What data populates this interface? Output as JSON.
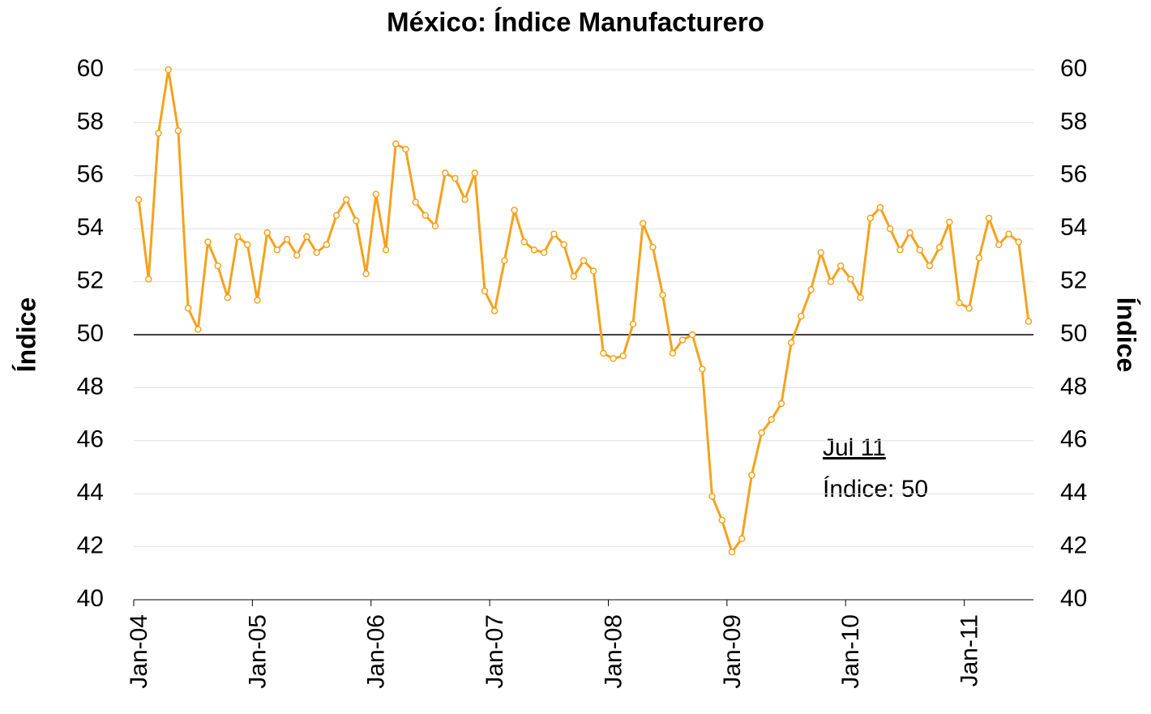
{
  "chart_data": {
    "type": "line",
    "title": "México: Índice Manufacturero",
    "ylabel": "Índice",
    "y2label": "Índice",
    "categories": [
      "Jan-04",
      null,
      null,
      null,
      null,
      null,
      null,
      null,
      null,
      null,
      null,
      null,
      "Jan-05",
      null,
      null,
      null,
      null,
      null,
      null,
      null,
      null,
      null,
      null,
      null,
      "Jan-06",
      null,
      null,
      null,
      null,
      null,
      null,
      null,
      null,
      null,
      null,
      null,
      "Jan-07",
      null,
      null,
      null,
      null,
      null,
      null,
      null,
      null,
      null,
      null,
      null,
      "Jan-08",
      null,
      null,
      null,
      null,
      null,
      null,
      null,
      null,
      null,
      null,
      null,
      "Jan-09",
      null,
      null,
      null,
      null,
      null,
      null,
      null,
      null,
      null,
      null,
      null,
      "Jan-10",
      null,
      null,
      null,
      null,
      null,
      null,
      null,
      null,
      null,
      null,
      null,
      "Jan-11",
      null,
      null,
      null,
      null,
      null,
      null
    ],
    "series": [
      {
        "name": "Índice",
        "color": "#f5a21e",
        "values": [
          55.1,
          52.1,
          57.6,
          60.0,
          57.7,
          51.0,
          50.2,
          53.5,
          52.6,
          51.4,
          53.7,
          53.4,
          51.3,
          53.85,
          53.2,
          53.6,
          53.0,
          53.7,
          53.1,
          53.4,
          54.5,
          55.1,
          54.3,
          52.3,
          55.3,
          53.2,
          57.2,
          57.0,
          55.0,
          54.5,
          54.1,
          56.1,
          55.9,
          55.1,
          56.1,
          51.65,
          50.9,
          52.8,
          54.7,
          53.5,
          53.2,
          53.1,
          53.8,
          53.4,
          52.2,
          52.8,
          52.4,
          49.3,
          49.1,
          49.2,
          50.4,
          54.2,
          53.3,
          51.5,
          49.3,
          49.8,
          50.0,
          48.7,
          43.9,
          43.0,
          41.8,
          42.3,
          44.7,
          46.3,
          46.8,
          47.4,
          49.7,
          50.7,
          51.7,
          53.1,
          52.0,
          52.6,
          52.1,
          51.4,
          54.4,
          54.8,
          54.0,
          53.2,
          53.85,
          53.2,
          52.6,
          53.3,
          54.25,
          51.2,
          51.0,
          52.9,
          54.4,
          53.4,
          53.8,
          53.5,
          50.5
        ]
      }
    ],
    "ylim": [
      40,
      60
    ],
    "yticks": [
      40,
      42,
      44,
      46,
      48,
      50,
      52,
      54,
      56,
      58,
      60
    ],
    "y2lim": [
      40,
      60
    ],
    "y2ticks": [
      40,
      42,
      44,
      46,
      48,
      50,
      52,
      54,
      56,
      58,
      60
    ],
    "reference_line": 50,
    "grid": true,
    "annotation": {
      "title": "Jul 11",
      "text": "Índice: 50"
    }
  }
}
